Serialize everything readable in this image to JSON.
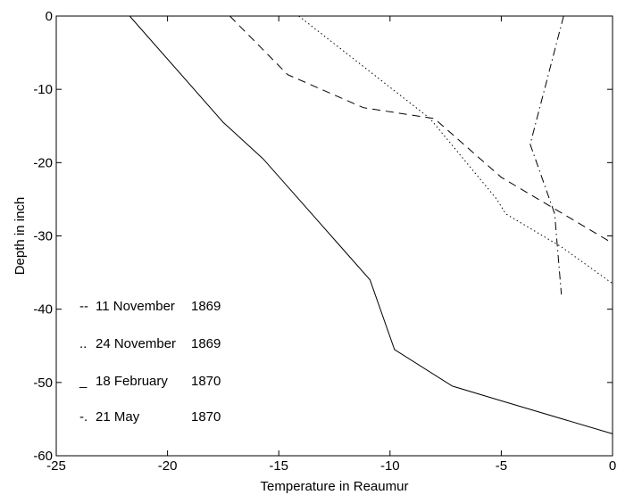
{
  "chart_data": {
    "type": "line",
    "title": "",
    "xlabel": "Temperature in Reaumur",
    "ylabel": "Depth in inch",
    "xlim": [
      -25,
      0
    ],
    "ylim": [
      -60,
      0
    ],
    "xticks": [
      -25,
      -20,
      -15,
      -10,
      -5,
      0
    ],
    "yticks": [
      0,
      -10,
      -20,
      -30,
      -40,
      -50,
      -60
    ],
    "xtick_labels": [
      "-25",
      "-20",
      "-15",
      "-10",
      "-5",
      "0"
    ],
    "ytick_labels": [
      "0",
      "-10",
      "-20",
      "-30",
      "-40",
      "-50",
      "-60"
    ],
    "grid": false,
    "legend_position": "lower-left",
    "series": [
      {
        "legend_marker": "--",
        "legend_label": "11 November",
        "legend_year": "1869",
        "line_style": "dashed",
        "x": [
          -17.2,
          -14.6,
          -11.2,
          -8.0,
          -5.0,
          -2.5,
          0.0
        ],
        "y": [
          0,
          -8,
          -12.5,
          -14,
          -22,
          -26.5,
          -31
        ]
      },
      {
        "legend_marker": "..",
        "legend_label": "24 November",
        "legend_year": "1869",
        "line_style": "dotted",
        "x": [
          -14.1,
          -8.2,
          -5.2,
          -4.8,
          -2.3,
          0.0
        ],
        "y": [
          0,
          -14,
          -25,
          -27,
          -31.5,
          -36.5
        ]
      },
      {
        "legend_marker": "_",
        "legend_label": "18 February",
        "legend_year": "1870",
        "line_style": "solid",
        "x": [
          -21.7,
          -17.5,
          -15.7,
          -10.9,
          -9.8,
          -7.2,
          -5.0,
          0.0
        ],
        "y": [
          0,
          -14.5,
          -19.5,
          -36,
          -45.5,
          -50.5,
          -52.5,
          -57
        ]
      },
      {
        "legend_marker": "-.",
        "legend_label": "21 May",
        "legend_year": "1870",
        "line_style": "dashdot",
        "x": [
          -2.2,
          -3.7,
          -2.6,
          -2.3
        ],
        "y": [
          0,
          -17.5,
          -27,
          -38
        ]
      }
    ]
  }
}
